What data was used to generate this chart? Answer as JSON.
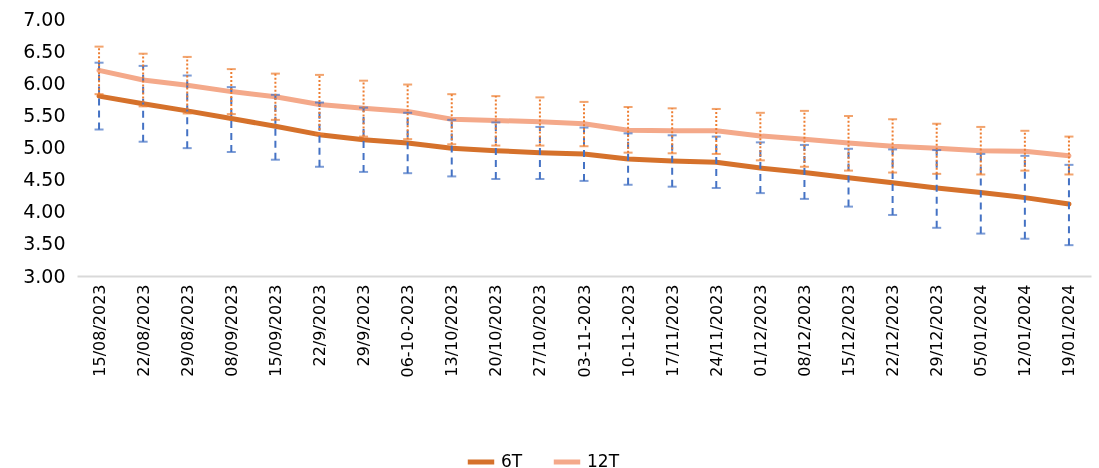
{
  "chart_data": {
    "type": "line",
    "categories": [
      "15/08/2023",
      "22/08/2023",
      "29/08/2023",
      "08/09/2023",
      "15/09/2023",
      "22/9/2023",
      "29/9/2023",
      "06-10-2023",
      "13/10/2023",
      "20/10/2023",
      "27/10/2023",
      "03-11-2023",
      "10-11-2023",
      "17/11/2023",
      "24/11/2023",
      "01/12/2023",
      "08/12/2023",
      "15/12/2023",
      "22/12/2023",
      "29/12/2023",
      "05/01/2024",
      "12/01/2024",
      "19/01/2024"
    ],
    "series": [
      {
        "name": "6T",
        "color": "#d5712b",
        "values": [
          5.8,
          5.68,
          5.57,
          5.45,
          5.33,
          5.2,
          5.12,
          5.07,
          4.99,
          4.95,
          4.92,
          4.9,
          4.82,
          4.79,
          4.77,
          4.68,
          4.61,
          4.53,
          4.45,
          4.37,
          4.3,
          4.22,
          4.12
        ],
        "errors": [
          [
            5.28,
            6.32
          ],
          [
            5.09,
            6.27
          ],
          [
            4.99,
            6.12
          ],
          [
            4.93,
            5.94
          ],
          [
            4.81,
            5.82
          ],
          [
            4.7,
            5.7
          ],
          [
            4.62,
            5.62
          ],
          [
            4.6,
            5.54
          ],
          [
            4.55,
            5.43
          ],
          [
            4.51,
            5.39
          ],
          [
            4.51,
            5.32
          ],
          [
            4.48,
            5.31
          ],
          [
            4.42,
            5.22
          ],
          [
            4.39,
            5.19
          ],
          [
            4.37,
            5.17
          ],
          [
            4.29,
            5.08
          ],
          [
            4.2,
            5.04
          ],
          [
            4.08,
            4.98
          ],
          [
            3.95,
            4.97
          ],
          [
            3.75,
            4.96
          ],
          [
            3.66,
            4.9
          ],
          [
            3.58,
            4.87
          ],
          [
            3.48,
            4.73
          ]
        ]
      },
      {
        "name": "12T",
        "color": "#f4a98a",
        "values": [
          6.2,
          6.05,
          5.97,
          5.87,
          5.79,
          5.67,
          5.61,
          5.56,
          5.44,
          5.42,
          5.4,
          5.37,
          5.27,
          5.26,
          5.26,
          5.18,
          5.13,
          5.07,
          5.02,
          4.99,
          4.95,
          4.94,
          4.87
        ],
        "errors": [
          [
            5.83,
            6.57
          ],
          [
            5.64,
            6.46
          ],
          [
            5.53,
            6.41
          ],
          [
            5.52,
            6.22
          ],
          [
            5.43,
            6.15
          ],
          [
            5.21,
            6.13
          ],
          [
            5.17,
            6.04
          ],
          [
            5.13,
            5.98
          ],
          [
            5.05,
            5.83
          ],
          [
            5.03,
            5.8
          ],
          [
            5.03,
            5.78
          ],
          [
            5.02,
            5.71
          ],
          [
            4.92,
            5.63
          ],
          [
            4.91,
            5.61
          ],
          [
            4.9,
            5.6
          ],
          [
            4.8,
            5.54
          ],
          [
            4.7,
            5.57
          ],
          [
            4.64,
            5.49
          ],
          [
            4.61,
            5.44
          ],
          [
            4.59,
            5.37
          ],
          [
            4.58,
            5.32
          ],
          [
            4.64,
            5.26
          ],
          [
            4.58,
            5.17
          ]
        ]
      }
    ],
    "ylim": [
      3,
      7
    ],
    "yticks": [
      {
        "value": 3,
        "label": "3.00"
      },
      {
        "value": 3.5,
        "label": "3.50"
      },
      {
        "value": 4,
        "label": "4.00"
      },
      {
        "value": 4.5,
        "label": "4.50"
      },
      {
        "value": 5,
        "label": "5.00"
      },
      {
        "value": 5.5,
        "label": "5.50"
      },
      {
        "value": 6,
        "label": "6.00"
      },
      {
        "value": 6.5,
        "label": "6.50"
      },
      {
        "value": 7,
        "label": "7.00"
      }
    ],
    "grid": false,
    "legend": "bottom"
  }
}
